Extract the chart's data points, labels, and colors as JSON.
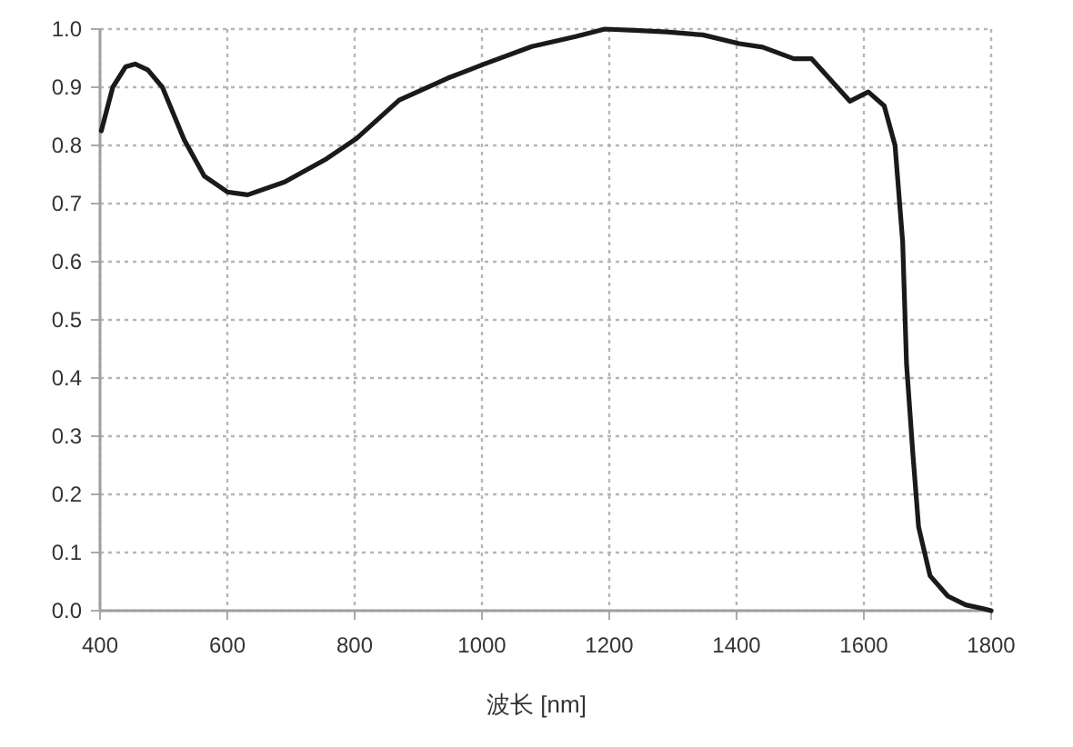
{
  "chart_data": {
    "type": "line",
    "xlabel": "波长 [nm]",
    "xlim": [
      400,
      1800
    ],
    "xticks": [
      400,
      600,
      800,
      1000,
      1200,
      1400,
      1600,
      1800
    ],
    "ylim": [
      0,
      1
    ],
    "yticks": [
      {
        "value": 0,
        "label": "0.0"
      },
      0.1,
      0.2,
      0.3,
      0.4,
      0.5,
      0.6,
      0.7,
      0.8,
      0.9,
      {
        "value": 1,
        "label": "1.0"
      }
    ],
    "grid": true,
    "marker": "none",
    "line_style": "solid",
    "series": [
      {
        "color": "#1a1a1a",
        "x": [
          402,
          420,
          440,
          455,
          475,
          498,
          532,
          564,
          600,
          632,
          690,
          756,
          803,
          870,
          947,
          1004,
          1078,
          1147,
          1193,
          1240,
          1290,
          1347,
          1404,
          1441,
          1490,
          1518,
          1555,
          1578,
          1607,
          1632,
          1649,
          1661,
          1667,
          1677,
          1686,
          1704,
          1732,
          1760,
          1789,
          1800
        ],
        "values": [
          0.825,
          0.9,
          0.935,
          0.94,
          0.93,
          0.9,
          0.81,
          0.747,
          0.72,
          0.715,
          0.737,
          0.777,
          0.812,
          0.878,
          0.916,
          0.94,
          0.97,
          0.987,
          1.0,
          0.998,
          0.995,
          0.99,
          0.975,
          0.969,
          0.949,
          0.949,
          0.904,
          0.876,
          0.892,
          0.868,
          0.8,
          0.634,
          0.425,
          0.27,
          0.144,
          0.06,
          0.025,
          0.01,
          0.003,
          0.0
        ]
      }
    ]
  }
}
